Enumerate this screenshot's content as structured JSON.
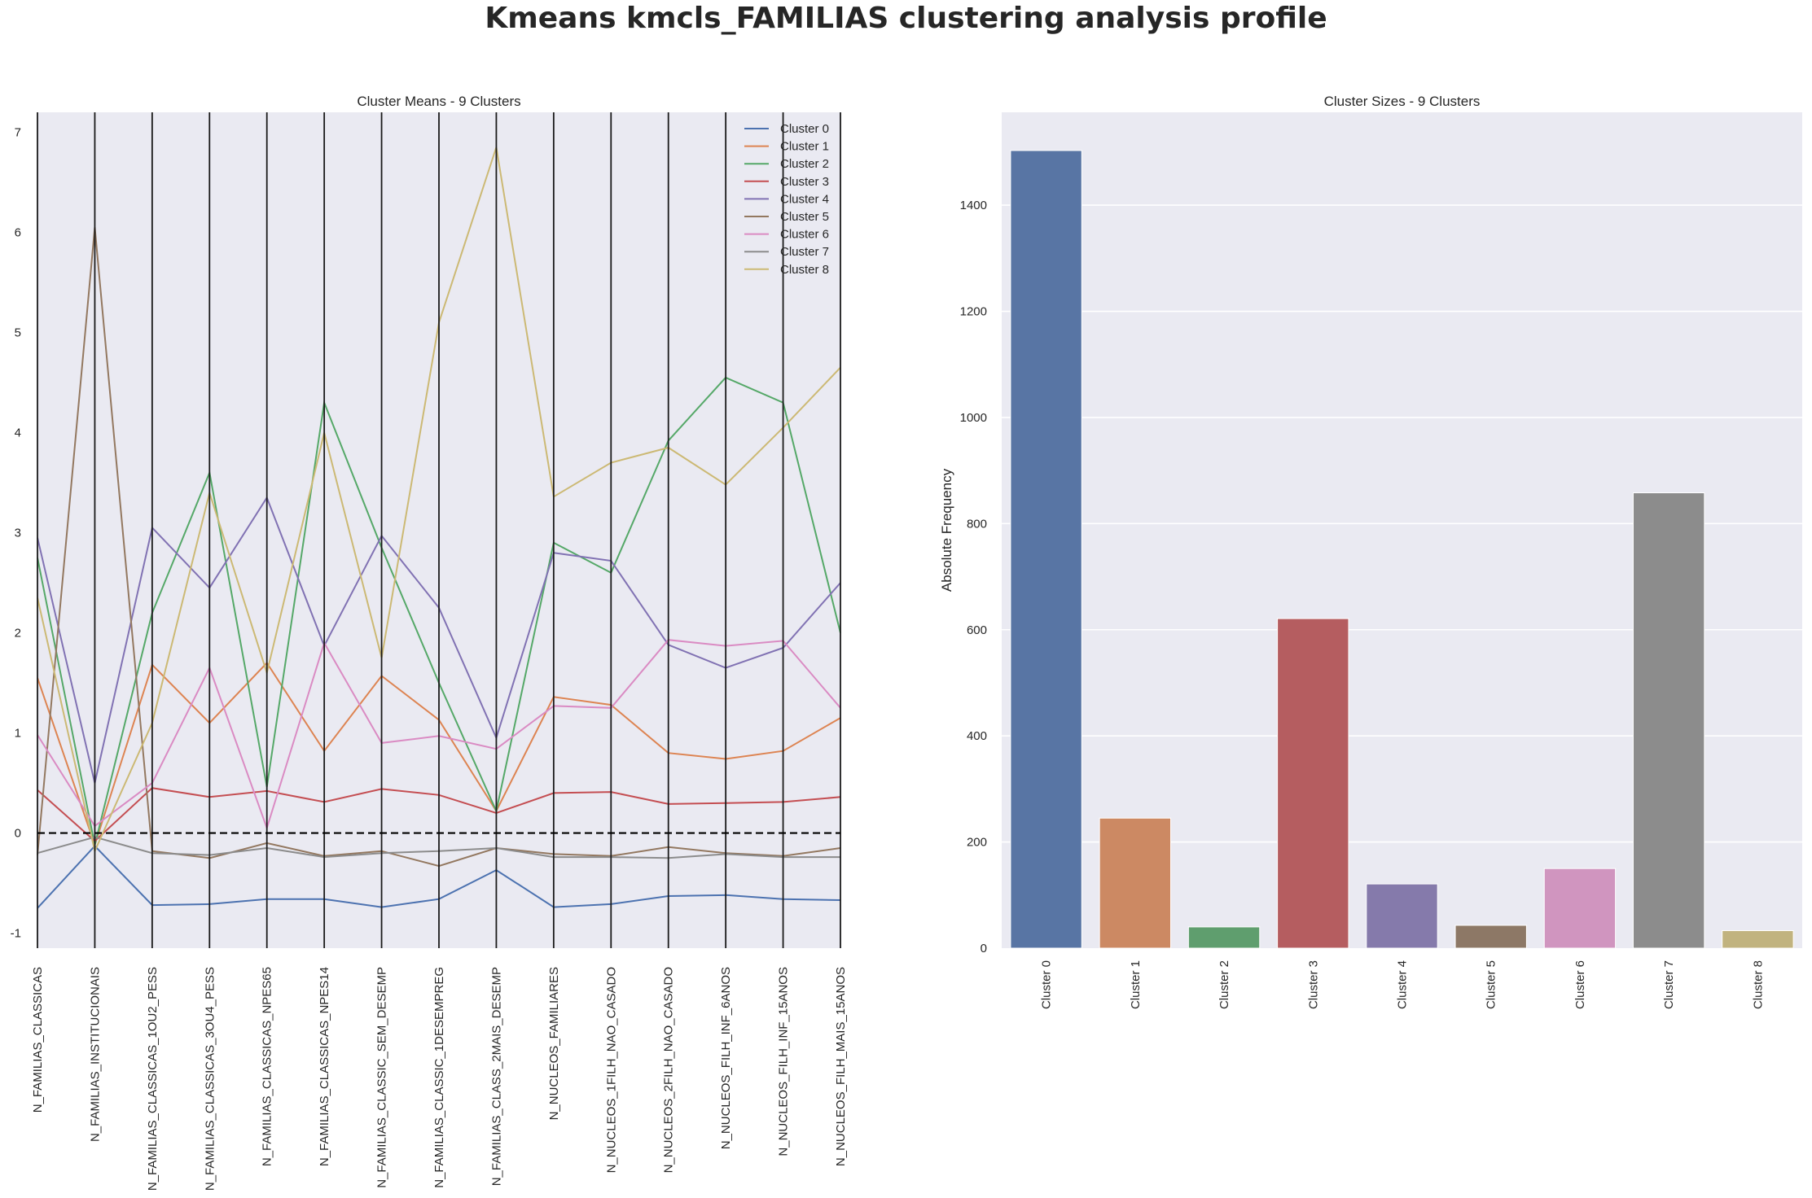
{
  "suptitle": "Kmeans kmcls_FAMILIAS clustering analysis profile",
  "colors": {
    "panel_bg": "#eaeaf2",
    "grid": "#ffffff",
    "axis_line": "#1a1a1a",
    "zero_line": "#000000",
    "line_series": [
      "#4c72b0",
      "#dd8452",
      "#55a868",
      "#c44e52",
      "#8172b3",
      "#937860",
      "#da8bc3",
      "#8c8c8c",
      "#ccb974"
    ],
    "bar_series": [
      "#5875a4",
      "#cc8963",
      "#5f9e6e",
      "#b55d60",
      "#857aab",
      "#8d7866",
      "#d095bf",
      "#8c8c8c",
      "#c1b37f"
    ]
  },
  "chart_data": [
    {
      "type": "line",
      "title": "Cluster Means - 9 Clusters",
      "xlabel": "",
      "ylabel": "",
      "ylim": [
        -1.15,
        7.2
      ],
      "yticks": [
        -1,
        0,
        1,
        2,
        3,
        4,
        5,
        6,
        7
      ],
      "grid": false,
      "reference_line": {
        "y": 0,
        "style": "dashed"
      },
      "legend": "top-right",
      "categories": [
        "N_FAMILIAS_CLASSICAS",
        "N_FAMILIAS_INSTITUCIONAIS",
        "N_FAMILIAS_CLASSICAS_1OU2_PESS",
        "N_FAMILIAS_CLASSICAS_3OU4_PESS",
        "N_FAMILIAS_CLASSICAS_NPES65",
        "N_FAMILIAS_CLASSICAS_NPES14",
        "N_FAMILIAS_CLASSIC_SEM_DESEMP",
        "N_FAMILIAS_CLASSIC_1DESEMPREG",
        "N_FAMILIAS_CLASS_2MAIS_DESEMP",
        "N_NUCLEOS_FAMILIARES",
        "N_NUCLEOS_1FILH_NAO_CASADO",
        "N_NUCLEOS_2FILH_NAO_CASADO",
        "N_NUCLEOS_FILH_INF_6ANOS",
        "N_NUCLEOS_FILH_INF_15ANOS",
        "N_NUCLEOS_FILH_MAIS_15ANOS"
      ],
      "series": [
        {
          "name": "Cluster 0",
          "values": [
            -0.75,
            -0.13,
            -0.72,
            -0.71,
            -0.66,
            -0.66,
            -0.74,
            -0.66,
            -0.37,
            -0.74,
            -0.71,
            -0.63,
            -0.62,
            -0.66,
            -0.67
          ]
        },
        {
          "name": "Cluster 1",
          "values": [
            1.55,
            -0.12,
            1.68,
            1.1,
            1.7,
            0.82,
            1.57,
            1.13,
            0.22,
            1.36,
            1.28,
            0.8,
            0.74,
            0.82,
            1.15
          ]
        },
        {
          "name": "Cluster 2",
          "values": [
            2.75,
            -0.12,
            2.2,
            3.6,
            0.46,
            4.3,
            2.85,
            1.5,
            0.22,
            2.9,
            2.6,
            3.92,
            4.55,
            4.3,
            2.0
          ]
        },
        {
          "name": "Cluster 3",
          "values": [
            0.43,
            -0.08,
            0.45,
            0.36,
            0.42,
            0.31,
            0.44,
            0.38,
            0.2,
            0.4,
            0.41,
            0.29,
            0.3,
            0.31,
            0.36
          ]
        },
        {
          "name": "Cluster 4",
          "values": [
            2.95,
            0.5,
            3.05,
            2.45,
            3.35,
            1.87,
            2.97,
            2.25,
            0.95,
            2.8,
            2.72,
            1.88,
            1.65,
            1.85,
            2.5
          ]
        },
        {
          "name": "Cluster 5",
          "values": [
            -0.22,
            6.05,
            -0.18,
            -0.25,
            -0.1,
            -0.23,
            -0.18,
            -0.33,
            -0.15,
            -0.21,
            -0.23,
            -0.14,
            -0.2,
            -0.23,
            -0.15
          ]
        },
        {
          "name": "Cluster 6",
          "values": [
            0.98,
            0.07,
            0.5,
            1.65,
            0.05,
            1.9,
            0.9,
            0.97,
            0.84,
            1.27,
            1.25,
            1.93,
            1.87,
            1.92,
            1.25
          ]
        },
        {
          "name": "Cluster 7",
          "values": [
            -0.2,
            -0.04,
            -0.2,
            -0.22,
            -0.15,
            -0.24,
            -0.2,
            -0.18,
            -0.15,
            -0.24,
            -0.24,
            -0.25,
            -0.21,
            -0.24,
            -0.24
          ]
        },
        {
          "name": "Cluster 8",
          "values": [
            2.35,
            -0.18,
            1.1,
            3.4,
            1.6,
            4.0,
            1.75,
            5.1,
            6.85,
            3.36,
            3.7,
            3.85,
            3.48,
            4.05,
            4.65
          ]
        }
      ]
    },
    {
      "type": "bar",
      "title": "Cluster Sizes - 9 Clusters",
      "xlabel": "",
      "ylabel": "Absolute Frequency",
      "ylim": [
        0,
        1575
      ],
      "yticks": [
        0,
        200,
        400,
        600,
        800,
        1000,
        1200,
        1400
      ],
      "grid": true,
      "categories": [
        "Cluster 0",
        "Cluster 1",
        "Cluster 2",
        "Cluster 3",
        "Cluster 4",
        "Cluster 5",
        "Cluster 6",
        "Cluster 7",
        "Cluster 8"
      ],
      "values": [
        1503,
        245,
        40,
        621,
        121,
        43,
        150,
        858,
        33
      ]
    }
  ]
}
